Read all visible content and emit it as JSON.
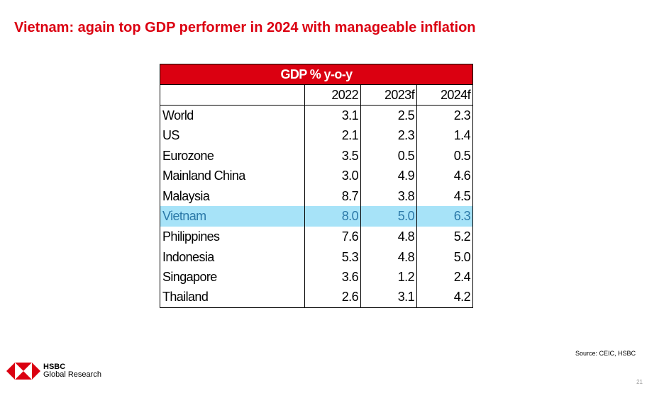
{
  "title": "Vietnam: again top GDP performer in 2024 with manageable inflation",
  "table": {
    "header": "GDP % y-o-y",
    "columns": [
      "",
      "2022",
      "2023f",
      "2024f"
    ],
    "rows": [
      {
        "country": "World",
        "v2022": "3.1",
        "v2023": "2.5",
        "v2024": "2.3"
      },
      {
        "country": "US",
        "v2022": "2.1",
        "v2023": "2.3",
        "v2024": "1.4"
      },
      {
        "country": "Eurozone",
        "v2022": "3.5",
        "v2023": "0.5",
        "v2024": "0.5"
      },
      {
        "country": "Mainland China",
        "v2022": "3.0",
        "v2023": "4.9",
        "v2024": "4.6"
      },
      {
        "country": "Malaysia",
        "v2022": "8.7",
        "v2023": "3.8",
        "v2024": "4.5"
      },
      {
        "country": "Vietnam",
        "v2022": "8.0",
        "v2023": "5.0",
        "v2024": "6.3"
      },
      {
        "country": "Philippines",
        "v2022": "7.6",
        "v2023": "4.8",
        "v2024": "5.2"
      },
      {
        "country": "Indonesia",
        "v2022": "5.3",
        "v2023": "4.8",
        "v2024": "5.0"
      },
      {
        "country": "Singapore",
        "v2022": "3.6",
        "v2023": "1.2",
        "v2024": "2.4"
      },
      {
        "country": "Thailand",
        "v2022": "2.6",
        "v2023": "3.1",
        "v2024": "4.2"
      }
    ],
    "highlight_color": "#a7e3f8"
  },
  "source": "Source: CEIC, HSBC",
  "page_number": "21",
  "logo": {
    "brand": "HSBC",
    "sub": "Global Research",
    "color": "#db0011"
  },
  "accent_color": "#db0011"
}
